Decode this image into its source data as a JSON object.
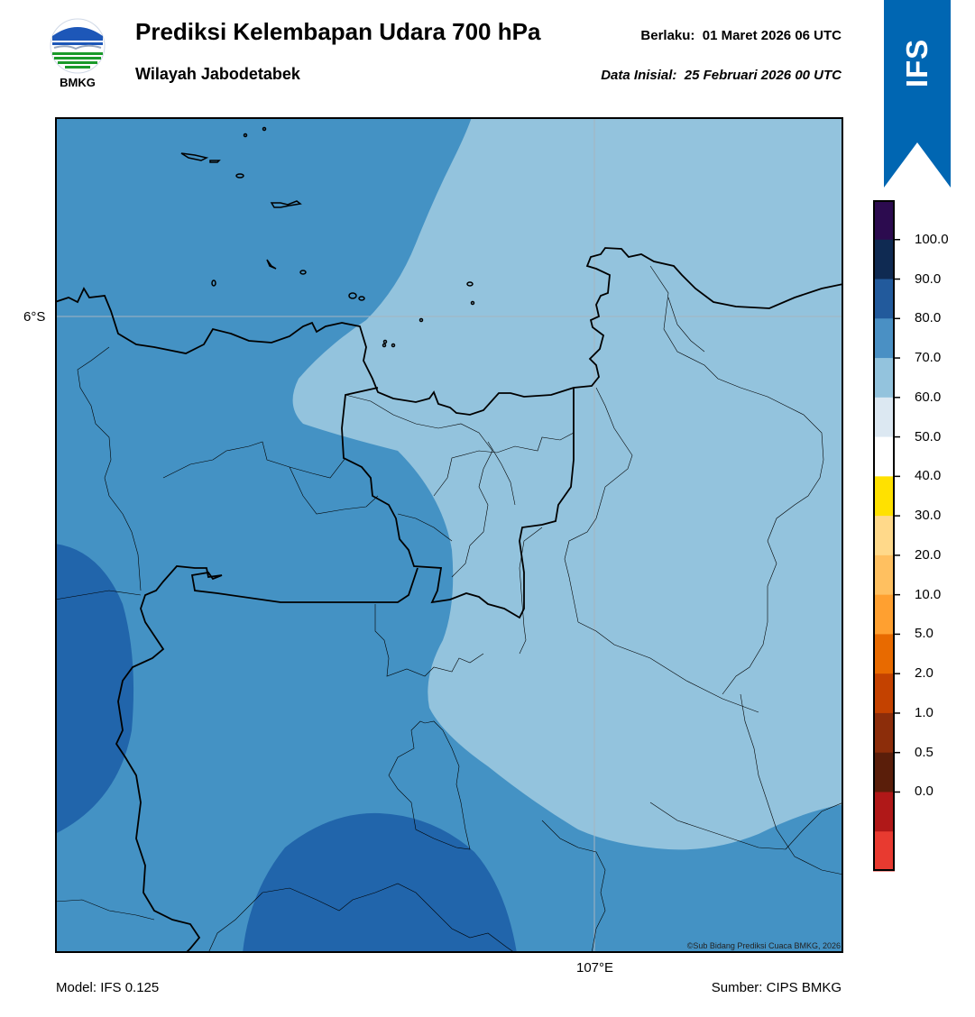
{
  "header": {
    "logo_text": "BMKG",
    "title": "Prediksi Kelembapan Udara 700 hPa",
    "subtitle": "Wilayah Jabodetabek",
    "valid": "Berlaku:  01 Maret 2026 06 UTC",
    "init": "Data Inisial:  25 Februari 2026 00 UTC",
    "badge": "IFS"
  },
  "map": {
    "lat_label": "6°S",
    "lon_label": "107°E",
    "credit": "©Sub Bidang Prediksi Cuaca BMKG, 2026"
  },
  "colorbar": {
    "labels": [
      "100.0",
      "90.0",
      "80.0",
      "70.0",
      "60.0",
      "50.0",
      "40.0",
      "30.0",
      "20.0",
      "10.0",
      "5.0",
      "2.0",
      "1.0",
      "0.5",
      "0.0"
    ],
    "colors_top_to_bottom": [
      "#2c0b4f",
      "#0f2a52",
      "#225a9c",
      "#4a90c4",
      "#93c3dd",
      "#dce8f2",
      "#ffffff",
      "#ffe100",
      "#ffd98a",
      "#ffc060",
      "#ffa030",
      "#e86a00",
      "#c44200",
      "#8c2d0a",
      "#5a1e0a",
      "#b01818",
      "#e83a30"
    ]
  },
  "footer": {
    "model": "Model: IFS 0.125",
    "source": "Sumber: CIPS BMKG"
  },
  "colors": {
    "moist_70_80": "#4492c4",
    "moist_60_70": "#93c3dd",
    "moist_80_90": "#2165ab",
    "badge_blue": "#0066b2"
  }
}
